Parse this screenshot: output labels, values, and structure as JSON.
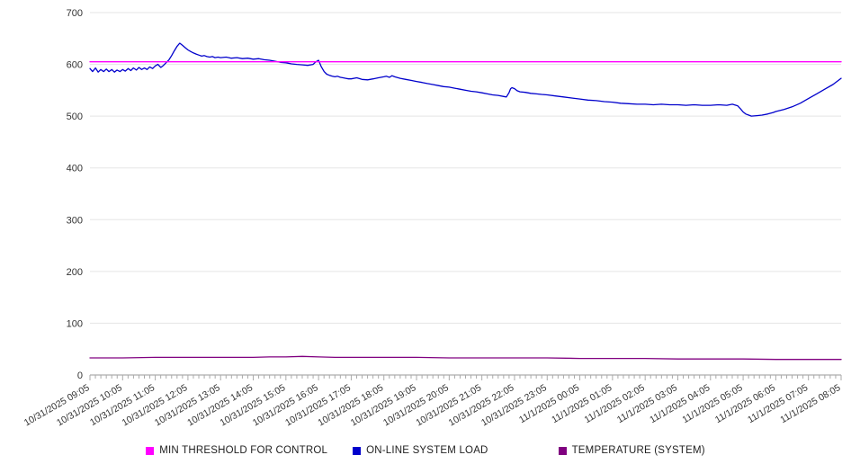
{
  "chart_data": {
    "type": "line",
    "title": "",
    "xlabel": "",
    "ylabel": "",
    "grid": "horizontal",
    "legend_position": "bottom",
    "colors": {
      "grid_line": "#e5e5e5",
      "axis_line": "#999999",
      "tick": "#aaaaaa",
      "label_text": "#333333"
    },
    "y_axis": {
      "min": 0,
      "max": 700,
      "tick_step": 100,
      "ticks": [
        0,
        100,
        200,
        300,
        400,
        500,
        600,
        700
      ]
    },
    "x_labels": [
      "10/31/2025 09:05",
      "10/31/2025 10:05",
      "10/31/2025 11:05",
      "10/31/2025 12:05",
      "10/31/2025 13:05",
      "10/31/2025 14:05",
      "10/31/2025 15:05",
      "10/31/2025 16:05",
      "10/31/2025 17:05",
      "10/31/2025 18:05",
      "10/31/2025 19:05",
      "10/31/2025 20:05",
      "10/31/2025 21:05",
      "10/31/2025 22:05",
      "10/31/2025 23:05",
      "11/1/2025 00:05",
      "11/1/2025 01:05",
      "11/1/2025 02:05",
      "11/1/2025 03:05",
      "11/1/2025 04:05",
      "11/1/2025 05:05",
      "11/1/2025 06:05",
      "11/1/2025 07:05",
      "11/1/2025 08:05"
    ],
    "series": [
      {
        "name": "MIN THRESHOLD FOR CONTROL",
        "color": "#ff00ff",
        "points": [
          [
            0,
            605
          ],
          [
            23,
            605
          ]
        ]
      },
      {
        "name": "ON-LINE SYSTEM LOAD",
        "color": "#0000cc",
        "points": [
          [
            0,
            592
          ],
          [
            0.08,
            586
          ],
          [
            0.17,
            593
          ],
          [
            0.25,
            585
          ],
          [
            0.33,
            590
          ],
          [
            0.42,
            586
          ],
          [
            0.5,
            591
          ],
          [
            0.58,
            586
          ],
          [
            0.67,
            590
          ],
          [
            0.75,
            585
          ],
          [
            0.83,
            589
          ],
          [
            0.92,
            586
          ],
          [
            1,
            590
          ],
          [
            1.08,
            587
          ],
          [
            1.17,
            592
          ],
          [
            1.25,
            588
          ],
          [
            1.33,
            593
          ],
          [
            1.42,
            589
          ],
          [
            1.5,
            594
          ],
          [
            1.58,
            590
          ],
          [
            1.67,
            593
          ],
          [
            1.75,
            590
          ],
          [
            1.83,
            595
          ],
          [
            1.92,
            592
          ],
          [
            2,
            597
          ],
          [
            2.08,
            600
          ],
          [
            2.17,
            594
          ],
          [
            2.25,
            598
          ],
          [
            2.33,
            603
          ],
          [
            2.42,
            609
          ],
          [
            2.5,
            617
          ],
          [
            2.58,
            626
          ],
          [
            2.67,
            635
          ],
          [
            2.75,
            641
          ],
          [
            2.83,
            637
          ],
          [
            2.92,
            632
          ],
          [
            3,
            628
          ],
          [
            3.08,
            625
          ],
          [
            3.17,
            622
          ],
          [
            3.25,
            620
          ],
          [
            3.33,
            618
          ],
          [
            3.42,
            616
          ],
          [
            3.5,
            617
          ],
          [
            3.58,
            615
          ],
          [
            3.67,
            614
          ],
          [
            3.75,
            615
          ],
          [
            3.83,
            613
          ],
          [
            3.92,
            614
          ],
          [
            4,
            613
          ],
          [
            4.17,
            614
          ],
          [
            4.33,
            612
          ],
          [
            4.5,
            613
          ],
          [
            4.67,
            611
          ],
          [
            4.83,
            612
          ],
          [
            5,
            610
          ],
          [
            5.17,
            611
          ],
          [
            5.33,
            609
          ],
          [
            5.5,
            608
          ],
          [
            5.67,
            606
          ],
          [
            5.83,
            604
          ],
          [
            6,
            603
          ],
          [
            6.17,
            601
          ],
          [
            6.33,
            600
          ],
          [
            6.5,
            599
          ],
          [
            6.67,
            598
          ],
          [
            6.83,
            600
          ],
          [
            6.92,
            605
          ],
          [
            7,
            608
          ],
          [
            7.08,
            596
          ],
          [
            7.17,
            586
          ],
          [
            7.25,
            581
          ],
          [
            7.33,
            579
          ],
          [
            7.42,
            577
          ],
          [
            7.5,
            576
          ],
          [
            7.58,
            577
          ],
          [
            7.67,
            575
          ],
          [
            7.75,
            574
          ],
          [
            7.83,
            573
          ],
          [
            7.92,
            572
          ],
          [
            8,
            572
          ],
          [
            8.17,
            574
          ],
          [
            8.33,
            571
          ],
          [
            8.5,
            570
          ],
          [
            8.67,
            572
          ],
          [
            8.83,
            574
          ],
          [
            9,
            576
          ],
          [
            9.08,
            577
          ],
          [
            9.17,
            575
          ],
          [
            9.25,
            578
          ],
          [
            9.33,
            576
          ],
          [
            9.5,
            573
          ],
          [
            9.67,
            571
          ],
          [
            9.83,
            569
          ],
          [
            10,
            567
          ],
          [
            10.17,
            565
          ],
          [
            10.33,
            563
          ],
          [
            10.5,
            561
          ],
          [
            10.67,
            559
          ],
          [
            10.83,
            557
          ],
          [
            11,
            556
          ],
          [
            11.17,
            554
          ],
          [
            11.33,
            552
          ],
          [
            11.5,
            550
          ],
          [
            11.67,
            548
          ],
          [
            11.83,
            547
          ],
          [
            12,
            545
          ],
          [
            12.17,
            543
          ],
          [
            12.33,
            541
          ],
          [
            12.5,
            540
          ],
          [
            12.67,
            538
          ],
          [
            12.75,
            537
          ],
          [
            12.83,
            545
          ],
          [
            12.88,
            553
          ],
          [
            12.92,
            555
          ],
          [
            13,
            553
          ],
          [
            13.08,
            549
          ],
          [
            13.17,
            547
          ],
          [
            13.33,
            546
          ],
          [
            13.5,
            544
          ],
          [
            13.67,
            543
          ],
          [
            13.83,
            542
          ],
          [
            14,
            541
          ],
          [
            14.25,
            539
          ],
          [
            14.5,
            537
          ],
          [
            14.75,
            535
          ],
          [
            15,
            533
          ],
          [
            15.25,
            531
          ],
          [
            15.5,
            530
          ],
          [
            15.75,
            528
          ],
          [
            16,
            527
          ],
          [
            16.25,
            525
          ],
          [
            16.5,
            524
          ],
          [
            16.75,
            523
          ],
          [
            17,
            523
          ],
          [
            17.25,
            522
          ],
          [
            17.5,
            523
          ],
          [
            17.75,
            522
          ],
          [
            18,
            522
          ],
          [
            18.25,
            521
          ],
          [
            18.5,
            522
          ],
          [
            18.75,
            521
          ],
          [
            19,
            521
          ],
          [
            19.25,
            522
          ],
          [
            19.5,
            521
          ],
          [
            19.67,
            523
          ],
          [
            19.83,
            520
          ],
          [
            19.92,
            514
          ],
          [
            20,
            508
          ],
          [
            20.08,
            504
          ],
          [
            20.17,
            502
          ],
          [
            20.25,
            500
          ],
          [
            20.42,
            501
          ],
          [
            20.58,
            502
          ],
          [
            20.75,
            504
          ],
          [
            20.92,
            507
          ],
          [
            21,
            509
          ],
          [
            21.25,
            513
          ],
          [
            21.5,
            518
          ],
          [
            21.75,
            525
          ],
          [
            22,
            534
          ],
          [
            22.25,
            543
          ],
          [
            22.5,
            552
          ],
          [
            22.75,
            561
          ],
          [
            23,
            573
          ]
        ]
      },
      {
        "name": "TEMPERATURE (SYSTEM)",
        "color": "#800080",
        "points": [
          [
            0,
            33
          ],
          [
            1,
            33
          ],
          [
            2,
            34
          ],
          [
            3,
            34
          ],
          [
            4,
            34
          ],
          [
            5,
            34
          ],
          [
            5.5,
            35
          ],
          [
            6,
            35
          ],
          [
            6.5,
            36
          ],
          [
            7,
            35
          ],
          [
            7.5,
            34
          ],
          [
            8,
            34
          ],
          [
            9,
            34
          ],
          [
            10,
            34
          ],
          [
            11,
            33
          ],
          [
            12,
            33
          ],
          [
            13,
            33
          ],
          [
            14,
            33
          ],
          [
            15,
            32
          ],
          [
            16,
            32
          ],
          [
            17,
            32
          ],
          [
            18,
            31
          ],
          [
            19,
            31
          ],
          [
            20,
            31
          ],
          [
            21,
            30
          ],
          [
            22,
            30
          ],
          [
            23,
            30
          ]
        ]
      }
    ]
  },
  "legend": {
    "items": [
      {
        "label": "MIN THRESHOLD FOR CONTROL"
      },
      {
        "label": "ON-LINE SYSTEM LOAD"
      },
      {
        "label": "TEMPERATURE (SYSTEM)"
      }
    ]
  }
}
